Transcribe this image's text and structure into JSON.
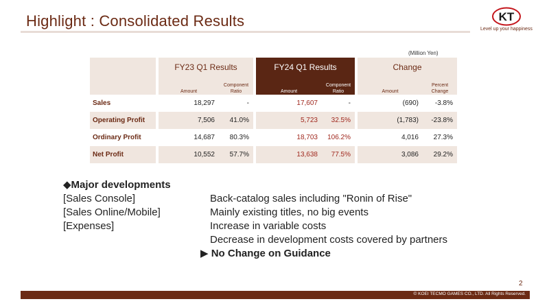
{
  "header": {
    "title": "Highlight : Consolidated Results"
  },
  "logo": {
    "mark": "KT",
    "tagline": "Level up your happiness"
  },
  "table": {
    "unit": "(Million Yen)",
    "groups": {
      "fy23": "FY23 Q1 Results",
      "fy24": "FY24 Q1 Results",
      "change": "Change"
    },
    "sub": {
      "amount": "Amount",
      "component_ratio_1": "Component",
      "component_ratio_2": "Ratio",
      "percent_1": "Percent",
      "percent_2": "Change"
    },
    "rows": [
      {
        "label": "Sales",
        "fy23_amount": "18,297",
        "fy23_ratio": "-",
        "fy24_amount": "17,607",
        "fy24_ratio": "-",
        "chg_amount": "(690)",
        "chg_percent": "-3.8%"
      },
      {
        "label": "Operating Profit",
        "fy23_amount": "7,506",
        "fy23_ratio": "41.0%",
        "fy24_amount": "5,723",
        "fy24_ratio": "32.5%",
        "chg_amount": "(1,783)",
        "chg_percent": "-23.8%"
      },
      {
        "label": "Ordinary Profit",
        "fy23_amount": "14,687",
        "fy23_ratio": "80.3%",
        "fy24_amount": "18,703",
        "fy24_ratio": "106.2%",
        "chg_amount": "4,016",
        "chg_percent": "27.3%"
      },
      {
        "label": "Net Profit",
        "fy23_amount": "10,552",
        "fy23_ratio": "57.7%",
        "fy24_amount": "13,638",
        "fy24_ratio": "77.5%",
        "chg_amount": "3,086",
        "chg_percent": "29.2%"
      }
    ]
  },
  "developments": {
    "heading": "◆Major developments",
    "items": [
      {
        "key": "[Sales Console]",
        "value": "Back-catalog sales including \"Ronin of Rise\""
      },
      {
        "key": "[Sales Online/Mobile]",
        "value": "Mainly existing titles, no big events"
      },
      {
        "key": "[Expenses]",
        "value": "Increase in variable costs"
      },
      {
        "key": "",
        "value": "Decrease in development costs covered by partners"
      }
    ],
    "guidance": "▶ No Change on Guidance"
  },
  "footer": {
    "page": "2",
    "copyright": "© KOEI TECMO GAMES CO., LTD. All Rights Reserved."
  }
}
